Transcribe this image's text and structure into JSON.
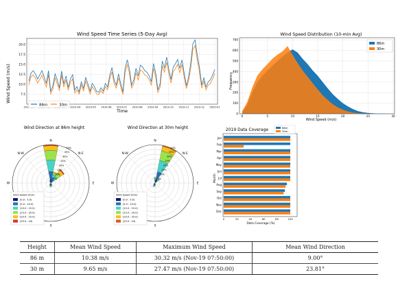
{
  "colors": {
    "c86": "#1f77b4",
    "c30": "#ff7f0e",
    "grid": "#e3e3e3",
    "bins": [
      "#0b1a6e",
      "#2a6fb8",
      "#49d3c8",
      "#9be34d",
      "#f3c21c",
      "#e15a1d"
    ],
    "wr86_extra": "#d43a2a"
  },
  "chart_data": [
    {
      "type": "line",
      "title": "Wind Speed Time Series (5-Day Avg)",
      "xlabel": "Time",
      "ylabel": "Wind Speed (m/s)",
      "ylim": [
        5.0,
        21.5
      ],
      "yticks": [
        "7.5",
        "10.0",
        "12.5",
        "15.0",
        "17.5",
        "20.0"
      ],
      "ytick_values": [
        7.5,
        10,
        12.5,
        15,
        17.5,
        20
      ],
      "xticks": [
        "2019-01",
        "2019-02",
        "2019-03",
        "2019-04",
        "2019-05",
        "2019-06",
        "2019-07",
        "2019-08",
        "2019-09",
        "2019-10",
        "2019-11",
        "2019-12",
        "2020-01"
      ],
      "grid": true,
      "legend": "bottom-left",
      "series": [
        {
          "name": "86m",
          "values": [
            10.8,
            12.8,
            13.4,
            12.6,
            11.3,
            12.3,
            13.4,
            11.8,
            10.2,
            13.4,
            8.2,
            9.6,
            12.6,
            11.1,
            9.1,
            13.3,
            10.1,
            12.1,
            9.2,
            11.3,
            12.4,
            8.6,
            9.4,
            8.1,
            10.6,
            9.0,
            11.7,
            10.1,
            8.3,
            10.2,
            9.4,
            8.2,
            8.0,
            9.1,
            8.3,
            10.2,
            9.3,
            12.3,
            14.2,
            11.1,
            9.8,
            12.6,
            10.2,
            8.1,
            14.1,
            16.1,
            13.8,
            9.8,
            11.1,
            14.0,
            12.1,
            14.8,
            14.3,
            13.4,
            13.0,
            12.1,
            10.6,
            15.2,
            12.8,
            8.6,
            10.1,
            15.8,
            14.1,
            16.8,
            13.8,
            11.2,
            14.3,
            15.1,
            16.2,
            14.0,
            16.1,
            12.8,
            9.6,
            11.7,
            15.2,
            20.2,
            21.1,
            17.3,
            14.2,
            9.8,
            11.6,
            9.3,
            10.6,
            11.1,
            12.3,
            13.7
          ]
        },
        {
          "name": "30m",
          "values": [
            9.9,
            11.9,
            12.3,
            11.6,
            10.3,
            11.2,
            12.3,
            10.8,
            9.3,
            12.4,
            7.6,
            8.8,
            11.6,
            10.1,
            8.4,
            12.3,
            9.3,
            11.1,
            8.5,
            10.4,
            11.3,
            7.8,
            8.6,
            7.5,
            9.8,
            8.3,
            10.8,
            9.3,
            7.6,
            9.4,
            8.6,
            7.6,
            7.4,
            8.4,
            7.7,
            9.4,
            8.6,
            11.3,
            13.1,
            10.2,
            9.0,
            11.6,
            9.4,
            7.5,
            13.0,
            14.9,
            12.7,
            9.0,
            10.2,
            12.9,
            11.1,
            13.6,
            13.2,
            12.3,
            12.0,
            11.1,
            9.8,
            14.0,
            11.8,
            7.9,
            9.3,
            14.6,
            13.0,
            15.5,
            12.7,
            10.3,
            13.2,
            13.9,
            15.0,
            12.9,
            14.9,
            11.8,
            8.9,
            10.8,
            14.0,
            18.8,
            19.7,
            16.0,
            13.1,
            9.0,
            10.7,
            8.6,
            9.8,
            10.2,
            11.3,
            12.7
          ]
        }
      ]
    },
    {
      "type": "area",
      "title": "Wind Speed Distribution (10-min Avg)",
      "xlabel": "Wind Speed (m/s)",
      "ylabel": "Frequency",
      "xlim": [
        0,
        30
      ],
      "ylim": [
        0,
        720
      ],
      "xticks": [
        "0",
        "5",
        "10",
        "15",
        "20",
        "25",
        "30"
      ],
      "yticks": [
        "0",
        "100",
        "200",
        "300",
        "400",
        "500",
        "600",
        "700"
      ],
      "tick_values_x": [
        0,
        5,
        10,
        15,
        20,
        25,
        30
      ],
      "tick_values_y": [
        0,
        100,
        200,
        300,
        400,
        500,
        600,
        700
      ],
      "grid": true,
      "legend": "top-right",
      "series": [
        {
          "name": "86m",
          "x": [
            0,
            1,
            2,
            3,
            4,
            5,
            6,
            7,
            8,
            9,
            10,
            11,
            12,
            13,
            14,
            15,
            16,
            17,
            18,
            19,
            20,
            21,
            22,
            23,
            24,
            25,
            26,
            27,
            28,
            29,
            30
          ],
          "values": [
            15,
            85,
            205,
            300,
            360,
            410,
            455,
            500,
            540,
            580,
            610,
            580,
            520,
            470,
            410,
            360,
            300,
            240,
            185,
            140,
            100,
            70,
            45,
            25,
            15,
            8,
            4,
            2,
            1,
            0,
            0
          ]
        },
        {
          "name": "30m",
          "x": [
            0,
            1,
            2,
            3,
            4,
            5,
            6,
            7,
            8,
            9,
            10,
            11,
            12,
            13,
            14,
            15,
            16,
            17,
            18,
            19,
            20,
            21,
            22,
            23,
            24,
            25,
            26,
            27,
            28,
            29,
            30
          ],
          "values": [
            25,
            110,
            250,
            360,
            420,
            470,
            520,
            560,
            590,
            640,
            560,
            480,
            410,
            350,
            290,
            230,
            175,
            130,
            90,
            60,
            38,
            22,
            12,
            6,
            3,
            1,
            0,
            0,
            0,
            0,
            0
          ]
        }
      ]
    },
    {
      "type": "rose",
      "title": "Wind Direction at 86m height",
      "directions": [
        "N",
        "N-E",
        "E",
        "S",
        "W",
        "N-W"
      ],
      "rings": [
        "5%",
        "10%",
        "15%",
        "20%",
        "25%",
        "30%",
        "35%",
        "40%"
      ],
      "legend_title": "wind speed (m/s)",
      "bins": [
        "[0.0 : 5.0)",
        "[5.0 : 10.0)",
        "[10.0 : 15.0)",
        "[15.0 : 20.0)",
        "[20.0 : 25.0)",
        "[25.0 : inf)"
      ],
      "sectors": [
        {
          "angle": 0,
          "values": [
            4,
            8,
            12,
            10,
            5,
            1
          ]
        },
        {
          "angle": 22.5,
          "values": [
            2,
            4,
            3,
            2,
            1,
            0
          ]
        },
        {
          "angle": 45,
          "values": [
            1,
            3,
            4,
            4,
            4,
            1
          ]
        },
        {
          "angle": 157.5,
          "values": [
            1,
            1,
            1,
            0,
            0,
            0
          ]
        },
        {
          "angle": 180,
          "values": [
            1,
            2,
            1,
            0,
            0,
            0
          ]
        },
        {
          "angle": 202.5,
          "values": [
            1,
            1,
            1,
            0,
            0,
            0
          ]
        },
        {
          "angle": 337.5,
          "values": [
            1,
            1,
            1,
            0,
            0,
            0
          ]
        }
      ]
    },
    {
      "type": "rose",
      "title": "Wind Direction at 30m height",
      "directions": [
        "N",
        "N-E",
        "E",
        "S",
        "W",
        "N-W"
      ],
      "rings": [
        "5%",
        "10%",
        "15%",
        "20%",
        "25%",
        "30%",
        "35%",
        "40%"
      ],
      "legend_title": "wind speed (m/s)",
      "bins": [
        "[0.0 : 5.0)",
        "[5.0 : 10.0)",
        "[10.0 : 15.0)",
        "[15.0 : 20.0)",
        "[20.0 : 25.0)",
        "[25.0 : inf)"
      ],
      "sectors": [
        {
          "angle": 22.5,
          "values": [
            4,
            8,
            12,
            10,
            5,
            1
          ]
        },
        {
          "angle": 45,
          "values": [
            1,
            2,
            2,
            1,
            0,
            0
          ]
        },
        {
          "angle": 0,
          "values": [
            1,
            2,
            2,
            1,
            0,
            0
          ]
        },
        {
          "angle": 180,
          "values": [
            1,
            1,
            1,
            0,
            0,
            0
          ]
        },
        {
          "angle": 202.5,
          "values": [
            1,
            2,
            1,
            0,
            0,
            0
          ]
        },
        {
          "angle": 225,
          "values": [
            1,
            1,
            0,
            0,
            0,
            0
          ]
        }
      ]
    },
    {
      "type": "bar",
      "orientation": "horizontal",
      "title": "2019 Data Coverage",
      "xlabel": "Data Coverage (%)",
      "ylabel": "Month",
      "xlim": [
        0,
        100
      ],
      "xticks": [
        "0",
        "20",
        "40",
        "60",
        "80",
        "100"
      ],
      "xtick_values": [
        0,
        20,
        40,
        60,
        80,
        100
      ],
      "legend": "top-right",
      "categories": [
        "Jan",
        "Feb",
        "Mar",
        "Apr",
        "May",
        "Jun",
        "Jul",
        "Aug",
        "Sep",
        "Oct",
        "Nov",
        "Dec"
      ],
      "series": [
        {
          "name": "86m",
          "values": [
            100,
            100,
            100,
            100,
            100,
            100,
            100,
            95,
            92,
            100,
            100,
            100
          ]
        },
        {
          "name": "30m",
          "values": [
            100,
            30,
            100,
            100,
            100,
            100,
            100,
            93,
            90,
            100,
            100,
            100
          ]
        }
      ]
    }
  ],
  "table": {
    "headers": [
      "Height",
      "Mean Wind Speed",
      "Maximum Wind Speed",
      "Mean Wind Direction"
    ],
    "rows": [
      [
        "86 m",
        "10.38 m/s",
        "30.32 m/s (Nov-19 07:50:00)",
        "9.00°"
      ],
      [
        "30 m",
        "9.65 m/s",
        "27.47 m/s (Nov-19 07:50:00)",
        "23.81°"
      ]
    ]
  }
}
